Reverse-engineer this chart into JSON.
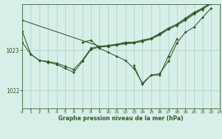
{
  "background_color": "#d8eee8",
  "grid_color": "#aad4c8",
  "line_color": "#2d5a27",
  "marker_color": "#2d5a27",
  "title": "Graphe pression niveau de la mer (hPa)",
  "xlim": [
    0,
    23
  ],
  "ylim": [
    1021.55,
    1024.15
  ],
  "yticks": [
    1022,
    1023
  ],
  "xticks": [
    0,
    1,
    2,
    3,
    4,
    5,
    6,
    7,
    8,
    9,
    10,
    11,
    12,
    13,
    14,
    15,
    16,
    17,
    18,
    19,
    20,
    21,
    22,
    23
  ],
  "series": [
    [
      1023.75,
      null,
      null,
      null,
      null,
      null,
      null,
      null,
      null,
      1023.1,
      1023.1,
      1023.15,
      1023.2,
      1023.2,
      1023.25,
      1023.3,
      1023.4,
      1023.55,
      1023.65,
      1023.8,
      1023.95,
      1024.05,
      1024.2,
      1024.4
    ],
    [
      1023.2,
      1022.9,
      1022.75,
      1022.72,
      1022.68,
      1022.6,
      1022.52,
      1022.75,
      1023.05,
      1023.1,
      1023.12,
      1023.15,
      1023.18,
      1023.2,
      1023.25,
      1023.3,
      1023.42,
      1023.55,
      1023.65,
      1023.78,
      1023.92,
      1024.05,
      1024.18,
      1024.32
    ],
    [
      1023.48,
      1022.9,
      1022.75,
      1022.7,
      1022.65,
      1022.55,
      1022.45,
      1022.72,
      1023.02,
      1023.08,
      1023.1,
      1023.13,
      1023.16,
      1023.18,
      1023.22,
      1023.28,
      1023.38,
      1023.52,
      1023.62,
      1023.75,
      1023.9,
      1024.02,
      1024.16,
      1024.3
    ],
    [
      null,
      null,
      null,
      null,
      null,
      null,
      null,
      1023.2,
      1023.25,
      1023.05,
      1022.95,
      1022.85,
      1022.75,
      1022.55,
      1022.18,
      1022.38,
      1022.38,
      1022.85,
      1023.28,
      null,
      null,
      null,
      null,
      null
    ],
    [
      null,
      null,
      null,
      null,
      null,
      null,
      null,
      null,
      null,
      null,
      null,
      null,
      null,
      1022.62,
      1022.15,
      1022.38,
      1022.42,
      1022.72,
      1023.18,
      1023.45,
      1023.58,
      1023.82,
      1024.05,
      null
    ]
  ]
}
